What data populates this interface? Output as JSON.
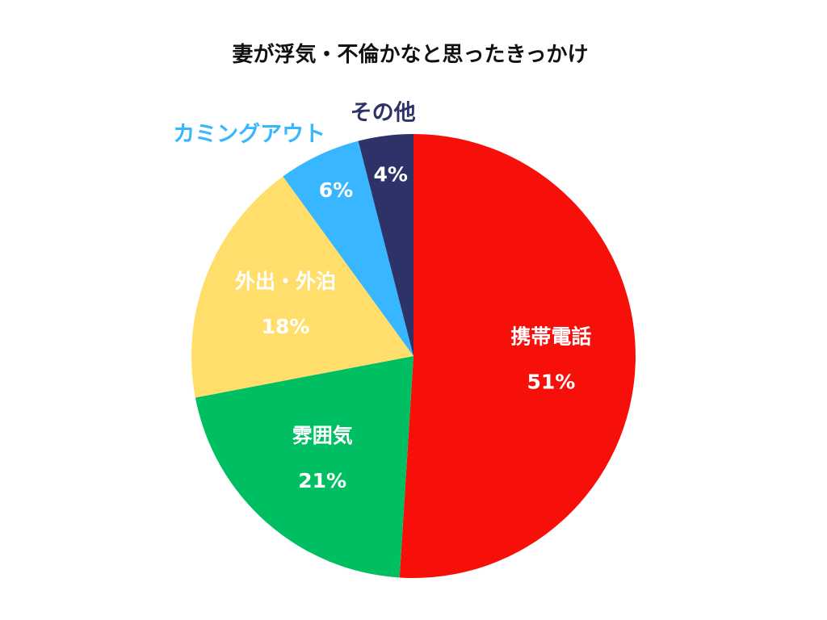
{
  "chart_data": {
    "type": "pie",
    "title": "妻が浮気・不倫かなと思ったきっかけ",
    "unit": "%",
    "slices": [
      {
        "label": "携帯電話",
        "value": 51,
        "value_label": "51%",
        "color": "#F70F0A",
        "label_color": "#FFFFFF",
        "label_placement": "inside"
      },
      {
        "label": "雰囲気",
        "value": 21,
        "value_label": "21%",
        "color": "#00BF63",
        "label_color": "#FFFFFF",
        "label_placement": "inside"
      },
      {
        "label": "外出・外泊",
        "value": 18,
        "value_label": "18%",
        "color": "#FFDE6B",
        "label_color": "#FFFFFF",
        "label_placement": "inside"
      },
      {
        "label": "カミングアウト",
        "value": 6,
        "value_label": "6%",
        "color": "#38B6FF",
        "label_color": "#38B6FF",
        "label_placement": "outside"
      },
      {
        "label": "その他",
        "value": 4,
        "value_label": "4%",
        "color": "#2D3368",
        "label_color": "#2D3368",
        "label_placement": "outside"
      }
    ],
    "start_angle": "12 o'clock",
    "direction": "clockwise",
    "legend": "none",
    "grid": false
  }
}
